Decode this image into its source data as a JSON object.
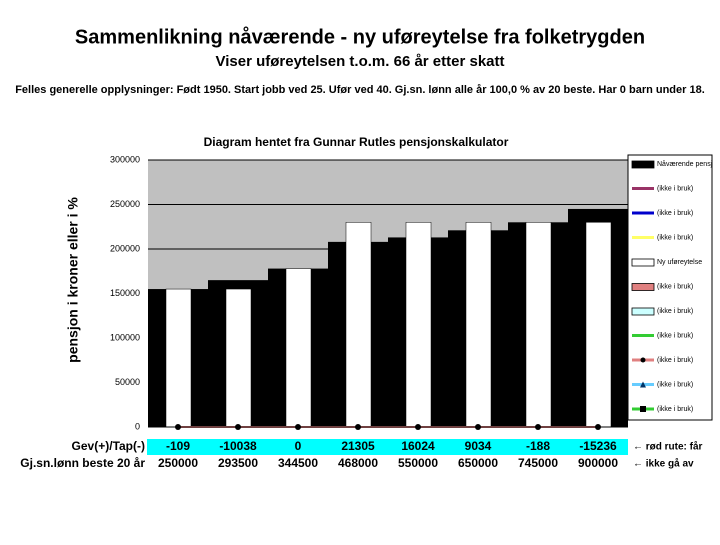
{
  "header": {
    "title": "Sammenlikning nåværende - ny uføreytelse fra folketrygden",
    "subtitle": "Viser uføreytelsen t.o.m. 66 år etter skatt",
    "info": "Felles generelle opplysninger: Født 1950. Start jobb ved 25. Ufør ved 40. Gj.sn. lønn alle år 100,0 % av 20 beste. Har 0 barn under 18."
  },
  "chart_data": {
    "type": "bar",
    "title": "Diagram hentet fra Gunnar Rutles pensjonskalkulator",
    "y_label": "pensjon i kroner eller i %",
    "ylim": [
      0,
      300000
    ],
    "yticks": [
      0,
      50000,
      100000,
      150000,
      200000,
      250000,
      300000
    ],
    "grid": true,
    "background": "#c0c0c0",
    "series": [
      {
        "color": "#000000",
        "style": "wide",
        "values": [
          155000,
          165000,
          178000,
          208000,
          213000,
          221000,
          230000,
          245000
        ]
      },
      {
        "color": "#ffffff",
        "style": "narrow",
        "values": [
          155000,
          155000,
          178000,
          230000,
          230000,
          230000,
          230000,
          230000
        ]
      },
      {
        "color": "#e08080",
        "style": "line-dot",
        "values": [
          0,
          0,
          0,
          0,
          0,
          0,
          0,
          0
        ]
      }
    ],
    "legend": [
      {
        "name": "Nåværende pensj",
        "color": "#000000",
        "style": "box"
      },
      {
        "name": "(ikke i bruk)",
        "color": "#993366",
        "style": "line"
      },
      {
        "name": "(ikke i bruk)",
        "color": "#0000cc",
        "style": "line"
      },
      {
        "name": "(ikke i bruk)",
        "color": "#ffff66",
        "style": "line"
      },
      {
        "name": "Ny uføreytelse",
        "color": "#ffffff",
        "style": "box"
      },
      {
        "name": "(ikke i bruk)",
        "color": "#e08080",
        "style": "box"
      },
      {
        "name": "(ikke i bruk)",
        "color": "#ccffff",
        "style": "box"
      },
      {
        "name": "(ikke i bruk)",
        "color": "#33cc33",
        "style": "line"
      },
      {
        "name": "(ikke i bruk)",
        "color": "#e08080",
        "style": "line-dot"
      },
      {
        "name": "(ikke i bruk)",
        "color": "#66ccff",
        "style": "tri"
      },
      {
        "name": "(ikke i bruk)",
        "color": "#33cc33",
        "style": "line-sq"
      }
    ]
  },
  "table": {
    "rows": [
      {
        "label": "Gev(+)/Tap(-)",
        "values": [
          -109,
          -10038,
          0,
          21305,
          16024,
          9034,
          -188,
          -15236
        ],
        "note": "← rød rute: får"
      },
      {
        "label": "Gj.sn.lønn beste 20 år",
        "values": [
          250000,
          293500,
          344500,
          468000,
          550000,
          650000,
          745000,
          900000
        ],
        "note": "← ikke gå av"
      }
    ]
  }
}
